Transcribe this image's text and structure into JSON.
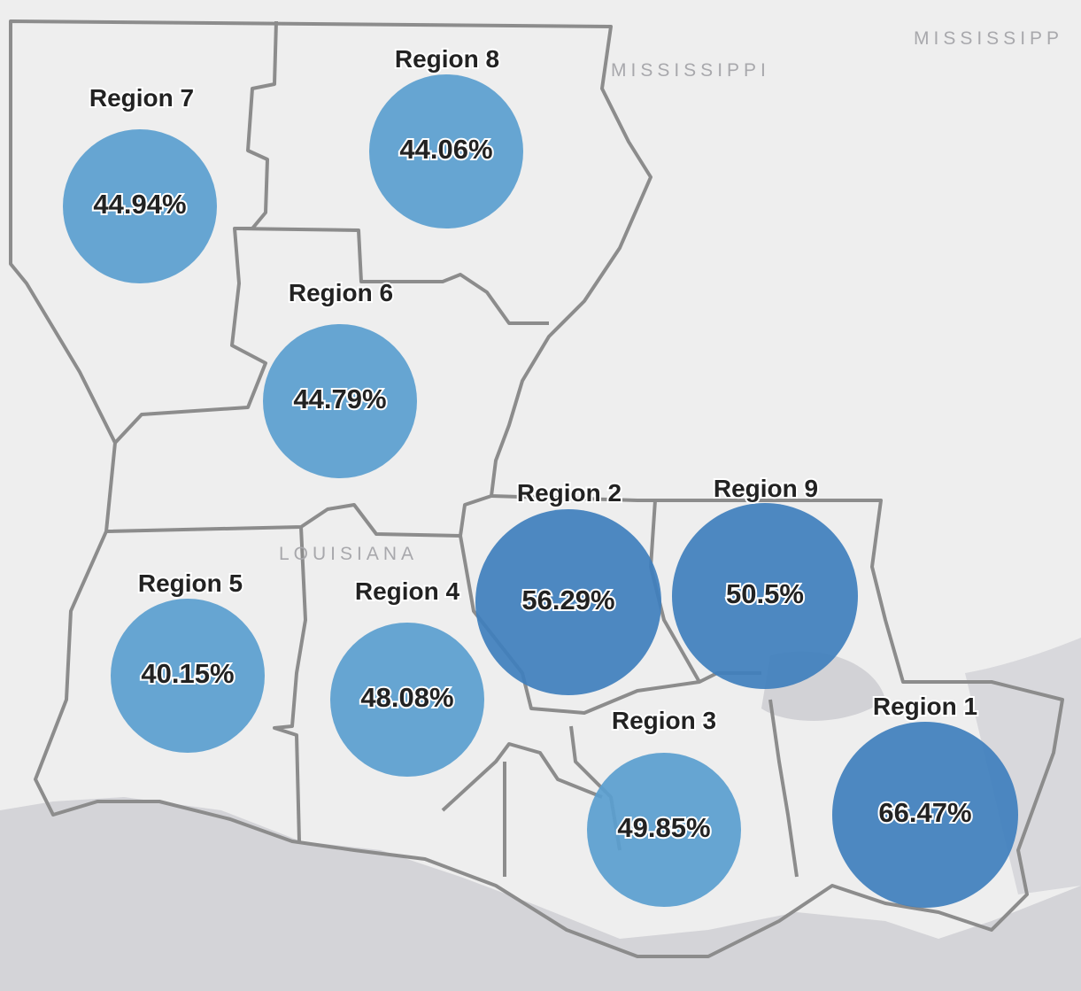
{
  "map": {
    "place_labels": [
      "MISSISSIPPI",
      "MISSISSIPP",
      "LOUISIANA"
    ],
    "regions": [
      {
        "name": "Region 7",
        "value": 44.94,
        "value_label": "44.94%"
      },
      {
        "name": "Region 8",
        "value": 44.06,
        "value_label": "44.06%"
      },
      {
        "name": "Region 6",
        "value": 44.79,
        "value_label": "44.79%"
      },
      {
        "name": "Region 5",
        "value": 40.15,
        "value_label": "40.15%"
      },
      {
        "name": "Region 4",
        "value": 48.08,
        "value_label": "48.08%"
      },
      {
        "name": "Region 2",
        "value": 56.29,
        "value_label": "56.29%"
      },
      {
        "name": "Region 9",
        "value": 50.5,
        "value_label": "50.5%"
      },
      {
        "name": "Region 3",
        "value": 49.85,
        "value_label": "49.85%"
      },
      {
        "name": "Region 1",
        "value": 66.47,
        "value_label": "66.47%"
      }
    ]
  }
}
